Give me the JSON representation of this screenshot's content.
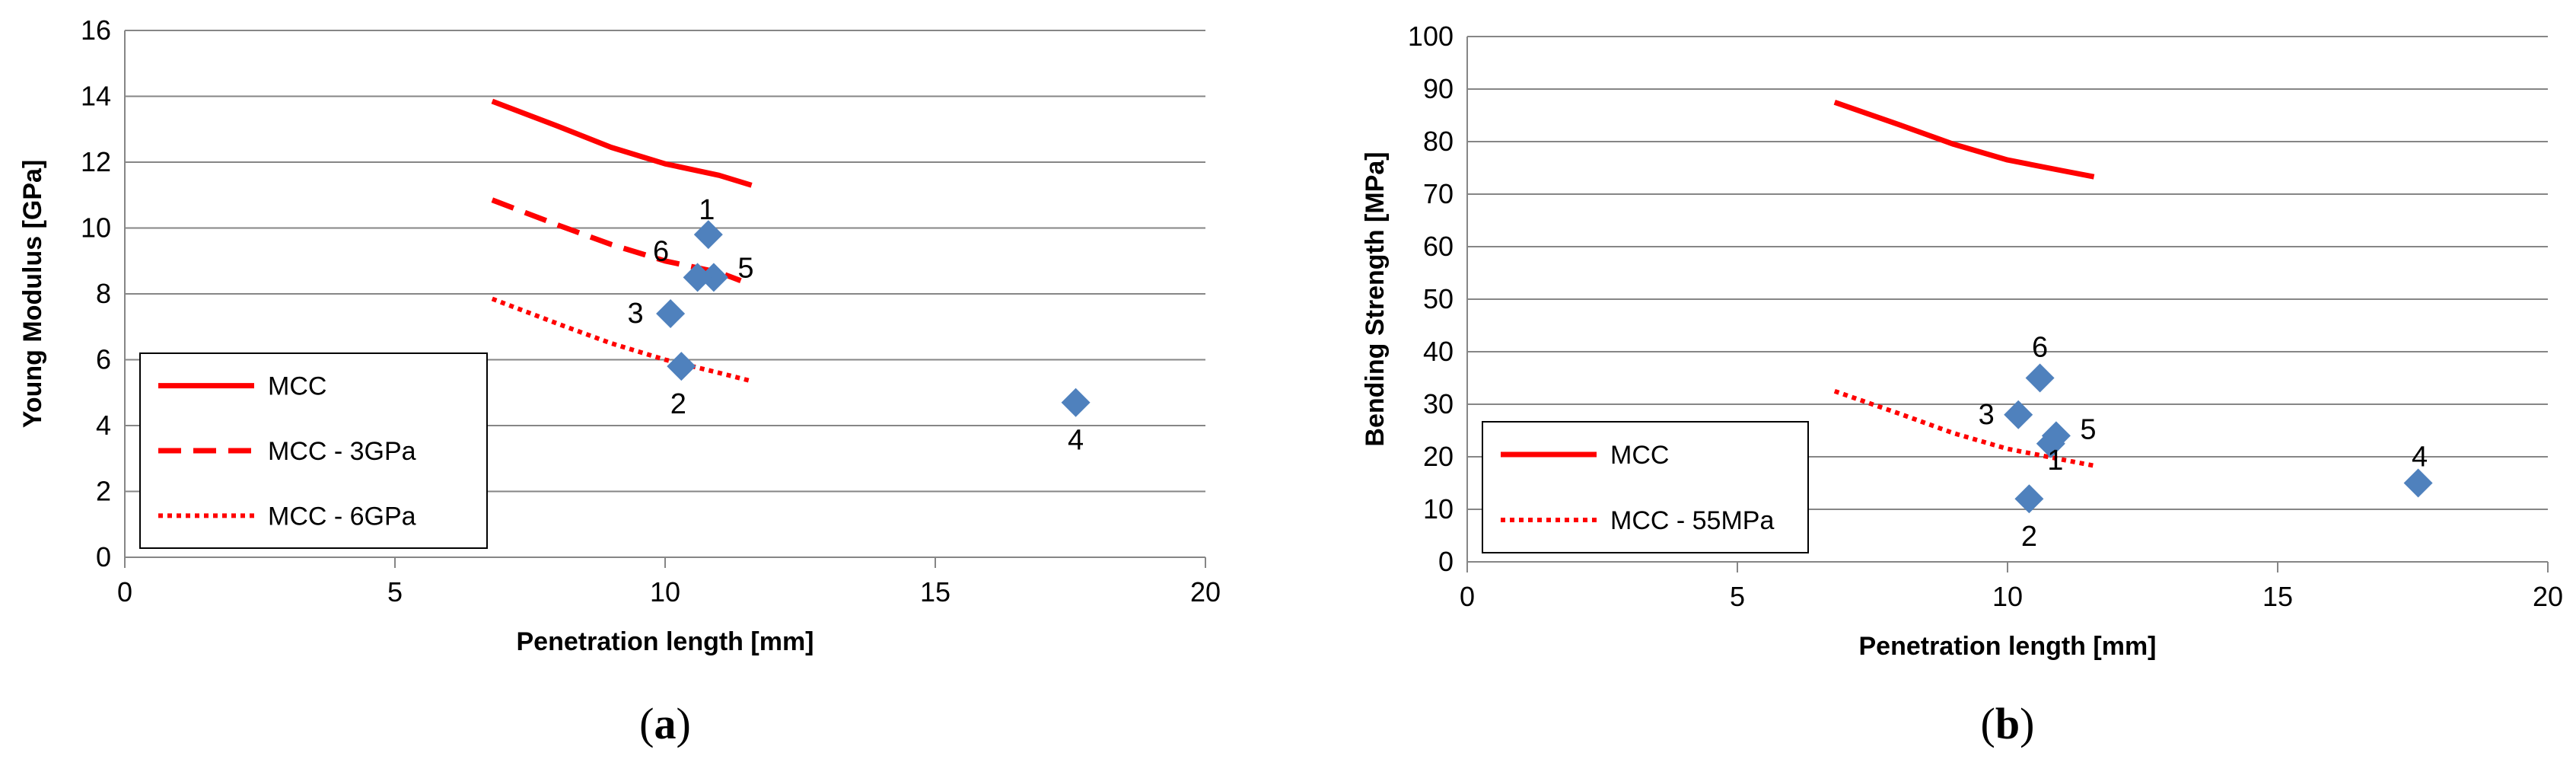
{
  "chart_data": [
    {
      "type": "scatter",
      "caption_open": "(",
      "caption_letter": "a",
      "caption_close": ")",
      "xlabel": "Penetration length [mm]",
      "ylabel": "Young Modulus [GPa]",
      "xlim": [
        0,
        20
      ],
      "ylim": [
        0,
        16
      ],
      "xticks": [
        "0",
        "5",
        "10",
        "15",
        "20"
      ],
      "yticks": [
        "0",
        "2",
        "4",
        "6",
        "8",
        "10",
        "12",
        "14",
        "16"
      ],
      "grid": "horizontal",
      "legend_position": "bottom-left",
      "marker_color": "#4F81BD",
      "line_color": "#FF0000",
      "points": [
        {
          "label": "1",
          "x": 10.8,
          "y": 9.8
        },
        {
          "label": "2",
          "x": 10.3,
          "y": 5.8
        },
        {
          "label": "3",
          "x": 10.1,
          "y": 7.4
        },
        {
          "label": "4",
          "x": 17.6,
          "y": 4.7
        },
        {
          "label": "5",
          "x": 10.9,
          "y": 8.5
        },
        {
          "label": "6",
          "x": 10.6,
          "y": 8.5
        }
      ],
      "series": [
        {
          "name": "MCC",
          "style": "solid",
          "x": [
            6.8,
            8,
            9,
            10,
            11,
            11.6
          ],
          "y": [
            13.85,
            13.1,
            12.45,
            11.95,
            11.6,
            11.3
          ]
        },
        {
          "name": "MCC - 3GPa",
          "style": "dashed",
          "x": [
            6.8,
            8,
            9,
            10,
            11,
            11.4
          ],
          "y": [
            10.85,
            10.1,
            9.5,
            9.0,
            8.65,
            8.4
          ]
        },
        {
          "name": "MCC - 6GPa",
          "style": "dotted",
          "x": [
            6.8,
            8,
            9,
            10,
            11,
            11.6
          ],
          "y": [
            7.85,
            7.1,
            6.5,
            6.0,
            5.6,
            5.35
          ]
        }
      ]
    },
    {
      "type": "scatter",
      "caption_open": "(",
      "caption_letter": "b",
      "caption_close": ")",
      "xlabel": "Penetration length [mm]",
      "ylabel": "Bending Strength [MPa]",
      "xlim": [
        0,
        20
      ],
      "ylim": [
        0,
        100
      ],
      "xticks": [
        "0",
        "5",
        "10",
        "15",
        "20"
      ],
      "yticks": [
        "0",
        "10",
        "20",
        "30",
        "40",
        "50",
        "60",
        "70",
        "80",
        "90",
        "100"
      ],
      "grid": "horizontal",
      "legend_position": "bottom-left",
      "marker_color": "#4F81BD",
      "line_color": "#FF0000",
      "points": [
        {
          "label": "1",
          "x": 10.8,
          "y": 22.5
        },
        {
          "label": "2",
          "x": 10.4,
          "y": 12.0
        },
        {
          "label": "3",
          "x": 10.2,
          "y": 28.0
        },
        {
          "label": "4",
          "x": 17.6,
          "y": 15.0
        },
        {
          "label": "5",
          "x": 10.9,
          "y": 24.0
        },
        {
          "label": "6",
          "x": 10.6,
          "y": 35.0
        }
      ],
      "series": [
        {
          "name": "MCC",
          "style": "solid",
          "x": [
            6.8,
            8,
            9,
            10,
            11,
            11.6
          ],
          "y": [
            87.5,
            83.2,
            79.5,
            76.5,
            74.5,
            73.3
          ]
        },
        {
          "name": "MCC - 55MPa",
          "style": "dotted",
          "x": [
            6.8,
            8,
            9,
            10,
            11,
            11.6
          ],
          "y": [
            32.5,
            28.2,
            24.5,
            21.5,
            19.5,
            18.3
          ]
        }
      ]
    }
  ]
}
